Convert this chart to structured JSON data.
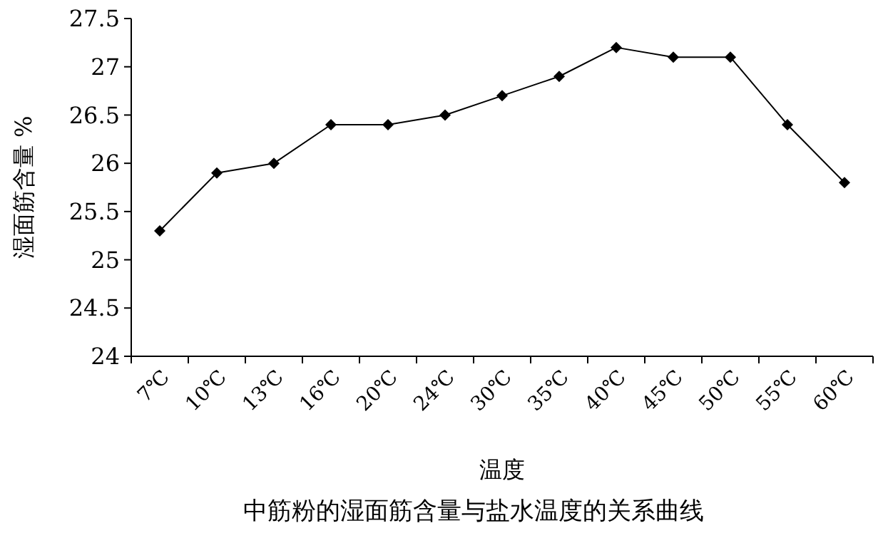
{
  "chart_data": {
    "type": "line",
    "title": "中筋粉的湿面筋含量与盐水温度的关系曲线",
    "xlabel": "温度",
    "ylabel": "湿面筋含量 %",
    "categories": [
      "7℃",
      "10℃",
      "13℃",
      "16℃",
      "20℃",
      "24℃",
      "30℃",
      "35℃",
      "40℃",
      "45℃",
      "50℃",
      "55℃",
      "60℃"
    ],
    "series": [
      {
        "color": "#000000",
        "values": [
          25.3,
          25.9,
          26.0,
          26.4,
          26.4,
          26.5,
          26.7,
          26.9,
          27.2,
          27.1,
          27.1,
          26.4,
          25.8
        ]
      }
    ],
    "ylim": [
      24,
      27.5
    ],
    "yticks": [
      24,
      24.5,
      25,
      25.5,
      26,
      26.5,
      27,
      27.5
    ],
    "grid": false,
    "marker": "diamond",
    "line_style": "solid"
  }
}
